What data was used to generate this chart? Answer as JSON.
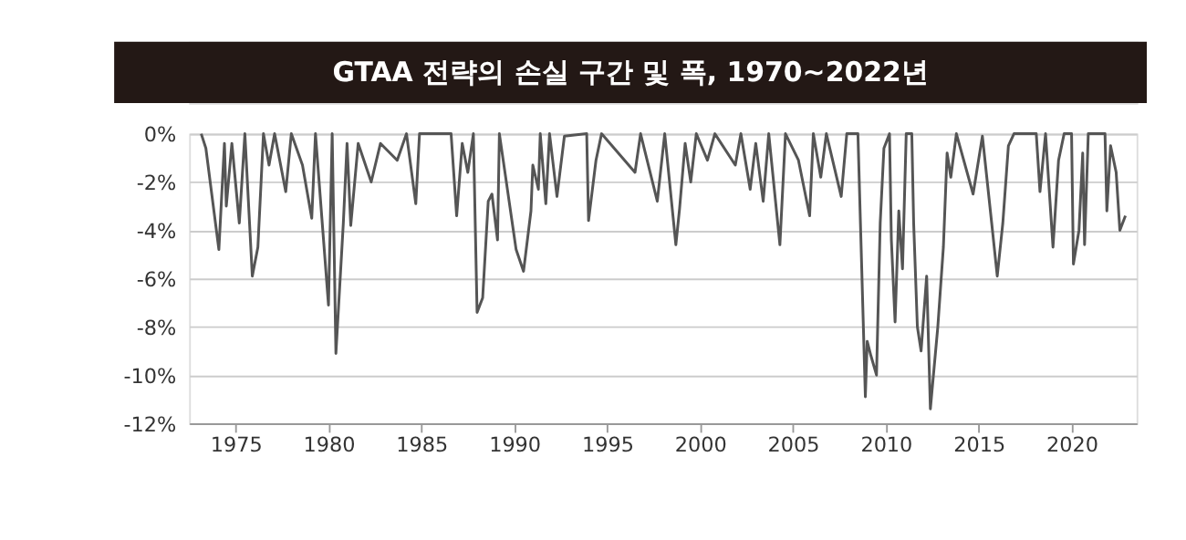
{
  "chart_data": {
    "type": "line",
    "title": "GTAA 전략의 손실 구간 및 폭, 1970~2022년",
    "x": [
      1973.15,
      1973.4,
      1974.1,
      1974.4,
      1974.5,
      1974.8,
      1975.2,
      1975.5,
      1975.9,
      1976.2,
      1976.5,
      1976.8,
      1977.1,
      1977.7,
      1978.0,
      1978.6,
      1979.1,
      1979.3,
      1980.0,
      1980.2,
      1980.4,
      1980.8,
      1981.0,
      1981.2,
      1981.6,
      1982.3,
      1982.8,
      1983.7,
      1984.2,
      1984.7,
      1984.9,
      1986.6,
      1986.9,
      1987.2,
      1987.5,
      1987.8,
      1988.0,
      1988.3,
      1988.6,
      1988.8,
      1989.1,
      1989.2,
      1990.1,
      1990.5,
      1990.9,
      1991.0,
      1991.3,
      1991.4,
      1991.7,
      1991.9,
      1992.3,
      1992.7,
      1993.9,
      1994.0,
      1994.4,
      1994.7,
      1996.5,
      1996.8,
      1997.7,
      1998.1,
      1998.7,
      1998.9,
      1999.2,
      1999.5,
      1999.8,
      2000.4,
      2000.8,
      2001.9,
      2002.2,
      2002.7,
      2003.0,
      2003.4,
      2003.7,
      2004.3,
      2004.6,
      2005.3,
      2005.9,
      2006.1,
      2006.5,
      2006.8,
      2007.6,
      2007.9,
      2008.5,
      2008.9,
      2009.0,
      2009.2,
      2009.5,
      2009.7,
      2009.9,
      2010.2,
      2010.3,
      2010.5,
      2010.7,
      2010.9,
      2011.1,
      2011.4,
      2011.5,
      2011.7,
      2011.9,
      2012.2,
      2012.4,
      2012.8,
      2013.1,
      2013.3,
      2013.5,
      2013.8,
      2014.7,
      2015.2,
      2015.7,
      2016.0,
      2016.3,
      2016.6,
      2016.9,
      2018.1,
      2018.3,
      2018.6,
      2019.0,
      2019.3,
      2019.6,
      2020.0,
      2020.1,
      2020.4,
      2020.6,
      2020.7,
      2020.9,
      2021.8,
      2021.9,
      2022.1,
      2022.4,
      2022.6,
      2022.9
    ],
    "series": [
      {
        "color": "#555555",
        "values": [
          0,
          -0.6,
          -4.8,
          -0.4,
          -3.0,
          -0.4,
          -3.7,
          0,
          -5.9,
          -4.7,
          0,
          -1.3,
          0,
          -2.4,
          0,
          -1.3,
          -3.5,
          0,
          -7.1,
          0,
          -9.1,
          -3.7,
          -0.4,
          -3.8,
          -0.4,
          -2.0,
          -0.4,
          -1.1,
          0,
          -2.9,
          0,
          0,
          -3.4,
          -0.4,
          -1.6,
          0,
          -7.4,
          -6.8,
          -2.8,
          -2.5,
          -4.4,
          0,
          -4.8,
          -5.7,
          -3.2,
          -1.3,
          -2.3,
          0,
          -2.9,
          0,
          -2.6,
          -0.1,
          0,
          -3.6,
          -1.1,
          0,
          -1.6,
          0,
          -2.8,
          0,
          -4.6,
          -3.1,
          -0.4,
          -2.0,
          0,
          -1.1,
          0,
          -1.3,
          0,
          -2.3,
          -0.4,
          -2.8,
          0,
          -4.6,
          0,
          -1.1,
          -3.4,
          0,
          -1.8,
          0,
          -2.6,
          0,
          0,
          -10.9,
          -8.6,
          -9.2,
          -10.0,
          -3.7,
          -0.6,
          0,
          -4.4,
          -7.8,
          -3.2,
          -5.6,
          0,
          0,
          -3.7,
          -8.0,
          -9.0,
          -5.9,
          -11.4,
          -8.0,
          -4.7,
          -0.8,
          -1.8,
          0,
          -2.5,
          -0.1,
          -3.7,
          -5.9,
          -3.7,
          -0.5,
          0,
          0,
          -2.4,
          0,
          -4.7,
          -1.1,
          0,
          0,
          -5.4,
          -4.0,
          -0.8,
          -4.6,
          0,
          0,
          -3.2,
          -0.5,
          -1.6,
          -4.0,
          -3.4
        ]
      }
    ],
    "xlim": [
      1972.5,
      2023.5
    ],
    "xticks": [
      1975,
      1980,
      1985,
      1990,
      1995,
      2000,
      2005,
      2010,
      2015,
      2020
    ],
    "ylim": [
      -12,
      0
    ],
    "yticks": [
      {
        "value": 0,
        "label": "0%"
      },
      {
        "value": -2,
        "label": "-2%"
      },
      {
        "value": -4,
        "label": "-4%"
      },
      {
        "value": -6,
        "label": "-6%"
      },
      {
        "value": -8,
        "label": "-8%"
      },
      {
        "value": -10,
        "label": "-10%"
      },
      {
        "value": -12,
        "label": "-12%"
      }
    ],
    "grid": "y",
    "marker": "none",
    "line_style": "solid"
  }
}
